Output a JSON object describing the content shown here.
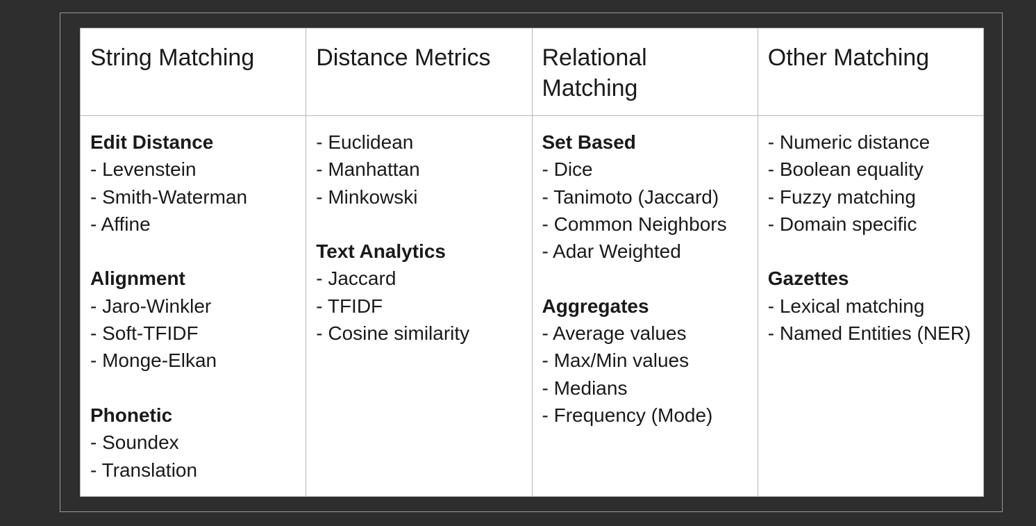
{
  "columns": [
    {
      "header": "String Matching",
      "groups": [
        {
          "title": "Edit Distance",
          "items": [
            "- Levenstein",
            "- Smith-Waterman",
            "- Affine"
          ]
        },
        {
          "title": "Alignment",
          "items": [
            "- Jaro-Winkler",
            "- Soft-TFIDF",
            "- Monge-Elkan"
          ]
        },
        {
          "title": "Phonetic",
          "items": [
            "- Soundex",
            "- Translation"
          ]
        }
      ]
    },
    {
      "header": "Distance Metrics",
      "groups": [
        {
          "title": "",
          "items": [
            "- Euclidean",
            "- Manhattan",
            "- Minkowski"
          ]
        },
        {
          "title": "Text Analytics",
          "items": [
            "- Jaccard",
            "- TFIDF",
            "- Cosine similarity"
          ]
        }
      ]
    },
    {
      "header": "Relational Matching",
      "groups": [
        {
          "title": "Set Based",
          "items": [
            "- Dice",
            "- Tanimoto (Jaccard)",
            "- Common Neighbors",
            "- Adar Weighted"
          ]
        },
        {
          "title": "Aggregates",
          "items": [
            "- Average values",
            "- Max/Min values",
            "- Medians",
            "- Frequency (Mode)"
          ]
        }
      ]
    },
    {
      "header": "Other Matching",
      "groups": [
        {
          "title": "",
          "items": [
            "- Numeric distance",
            "- Boolean equality",
            "- Fuzzy matching",
            "- Domain specific"
          ]
        },
        {
          "title": "Gazettes",
          "items": [
            "- Lexical matching",
            "- Named Entities (NER)"
          ]
        }
      ]
    }
  ]
}
